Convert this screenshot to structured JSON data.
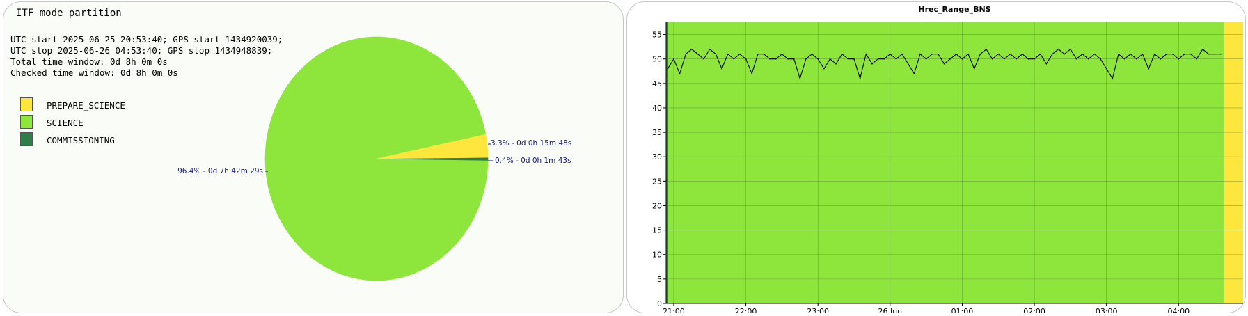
{
  "left_panel": {
    "title": "ITF mode partition",
    "info_lines": [
      "UTC start 2025-06-25 20:53:40; GPS start 1434920039;",
      "UTC stop 2025-06-26 04:53:40; GPS stop 1434948839;",
      "Total time window: 0d 8h 0m 0s",
      "Checked time window: 0d 8h 0m 0s"
    ],
    "legend": [
      {
        "label": "PREPARE_SCIENCE",
        "color": "#ffe63c"
      },
      {
        "label": "SCIENCE",
        "color": "#8ee63c"
      },
      {
        "label": "COMMISSIONING",
        "color": "#2e7d4a"
      }
    ]
  },
  "chart_data": [
    {
      "type": "pie",
      "title": "ITF mode partition",
      "slices": [
        {
          "category": "SCIENCE",
          "percent": 96.4,
          "label": "96.4% - 0d 7h 42m 29s",
          "color": "#8ee63c"
        },
        {
          "category": "PREPARE_SCIENCE",
          "percent": 3.3,
          "label": "3.3% - 0d 0h 15m 48s",
          "color": "#ffe63c"
        },
        {
          "category": "COMMISSIONING",
          "percent": 0.4,
          "label": "0.4% - 0d 0h 1m 43s",
          "color": "#2e7d4a"
        }
      ]
    },
    {
      "type": "line",
      "title": "Hrec_Range_BNS",
      "xlabel": "",
      "ylabel": "",
      "ylim": [
        0,
        57.5
      ],
      "yticks": [
        0,
        5,
        10,
        15,
        20,
        25,
        30,
        35,
        40,
        45,
        50,
        55
      ],
      "x_range": [
        "2025-06-25 20:53:40",
        "2025-06-26 04:53:40"
      ],
      "xticks": [
        "21:00",
        "22:00",
        "23:00",
        "26 Jun",
        "01:00",
        "02:00",
        "03:00",
        "04:00"
      ],
      "grid": true,
      "background_bands": [
        {
          "start": "2025-06-25 20:53:40",
          "end": "2025-06-25 20:55:23",
          "state": "COMMISSIONING",
          "color": "#2e7d4a"
        },
        {
          "start": "2025-06-25 20:55:23",
          "end": "2025-06-26 04:37:52",
          "state": "SCIENCE",
          "color": "#8ee63c"
        },
        {
          "start": "2025-06-26 04:37:52",
          "end": "2025-06-26 04:53:40",
          "state": "PREPARE_SCIENCE",
          "color": "#ffe63c"
        }
      ],
      "series": [
        {
          "color": "#000000",
          "x": [
            "20:55",
            "21:00",
            "21:05",
            "21:10",
            "21:15",
            "21:20",
            "21:25",
            "21:30",
            "21:35",
            "21:40",
            "21:45",
            "21:50",
            "21:55",
            "22:00",
            "22:05",
            "22:10",
            "22:15",
            "22:20",
            "22:25",
            "22:30",
            "22:35",
            "22:40",
            "22:45",
            "22:50",
            "22:55",
            "23:00",
            "23:05",
            "23:10",
            "23:15",
            "23:20",
            "23:25",
            "23:30",
            "23:35",
            "23:40",
            "23:45",
            "23:50",
            "23:55",
            "00:00",
            "00:05",
            "00:10",
            "00:15",
            "00:20",
            "00:25",
            "00:30",
            "00:35",
            "00:40",
            "00:45",
            "00:50",
            "00:55",
            "01:00",
            "01:05",
            "01:10",
            "01:15",
            "01:20",
            "01:25",
            "01:30",
            "01:35",
            "01:40",
            "01:45",
            "01:50",
            "01:55",
            "02:00",
            "02:05",
            "02:10",
            "02:15",
            "02:20",
            "02:25",
            "02:30",
            "02:35",
            "02:40",
            "02:45",
            "02:50",
            "02:55",
            "03:00",
            "03:05",
            "03:10",
            "03:15",
            "03:20",
            "03:25",
            "03:30",
            "03:35",
            "03:40",
            "03:45",
            "03:50",
            "03:55",
            "04:00",
            "04:05",
            "04:10",
            "04:15",
            "04:20",
            "04:25",
            "04:30",
            "04:35"
          ],
          "values": [
            48,
            50,
            47,
            51,
            52,
            51,
            50,
            52,
            51,
            48,
            51,
            50,
            51,
            50,
            47,
            51,
            51,
            50,
            50,
            51,
            50,
            50,
            46,
            50,
            51,
            50,
            48,
            50,
            49,
            51,
            50,
            50,
            46,
            51,
            49,
            50,
            50,
            51,
            50,
            51,
            49,
            47,
            51,
            50,
            51,
            51,
            49,
            50,
            51,
            50,
            51,
            48,
            51,
            52,
            50,
            51,
            50,
            51,
            50,
            51,
            50,
            50,
            51,
            49,
            51,
            52,
            51,
            52,
            50,
            51,
            50,
            51,
            50,
            48,
            46,
            51,
            50,
            51,
            50,
            51,
            48,
            51,
            50,
            51,
            51,
            50,
            51,
            51,
            50,
            52,
            51,
            51,
            51
          ]
        }
      ]
    }
  ]
}
